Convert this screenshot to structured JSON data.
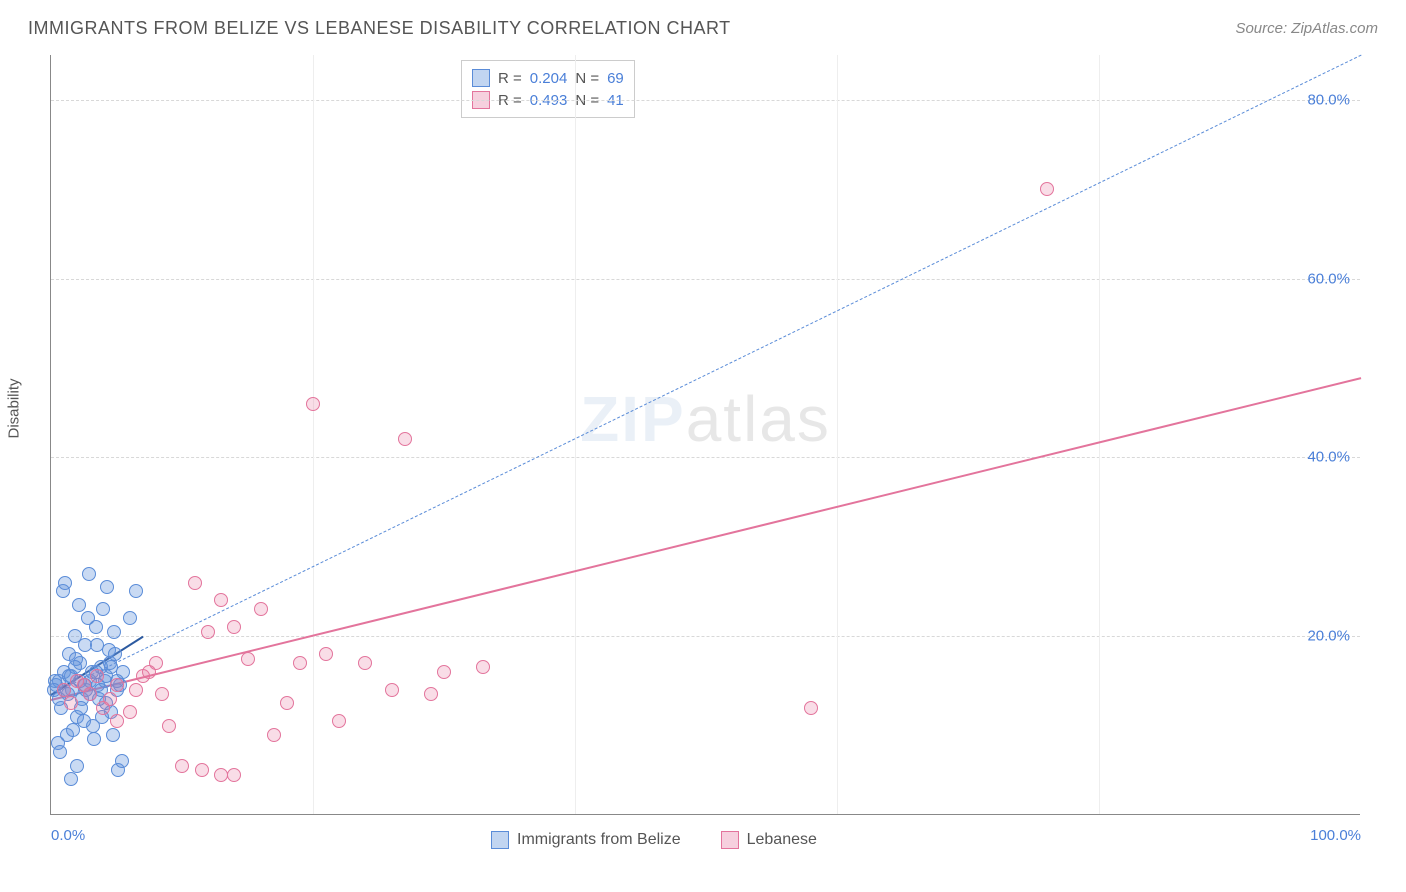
{
  "header": {
    "title": "IMMIGRANTS FROM BELIZE VS LEBANESE DISABILITY CORRELATION CHART",
    "source": "Source: ZipAtlas.com"
  },
  "watermark": {
    "bold": "ZIP",
    "thin": "atlas"
  },
  "chart": {
    "type": "scatter",
    "ylabel": "Disability",
    "xlim": [
      0,
      100
    ],
    "ylim": [
      0,
      85
    ],
    "background_color": "#ffffff",
    "grid_color": "#d8d8d8",
    "axis_color": "#888888",
    "tick_label_color": "#4a7fd8",
    "tick_fontsize": 15,
    "xtick_labels": [
      {
        "val": 0,
        "label": "0.0%"
      },
      {
        "val": 100,
        "label": "100.0%"
      }
    ],
    "xtick_minor": [
      20,
      40,
      60,
      80
    ],
    "ytick_labels": [
      {
        "val": 20,
        "label": "20.0%"
      },
      {
        "val": 40,
        "label": "40.0%"
      },
      {
        "val": 60,
        "label": "60.0%"
      },
      {
        "val": 80,
        "label": "80.0%"
      }
    ],
    "series": [
      {
        "name": "Immigrants from Belize",
        "color_fill": "rgba(100,150,220,0.35)",
        "color_stroke": "#5a8cd8",
        "marker_size": 14,
        "r": 0.204,
        "n": 69,
        "trend": {
          "style": "dashed",
          "color": "#5a8cd8",
          "width": 1.5,
          "from": [
            0,
            13.5
          ],
          "to": [
            100,
            85
          ]
        },
        "trend_solid_segment": {
          "style": "solid",
          "color": "#2c5aa0",
          "width": 2.5,
          "from": [
            0,
            13.5
          ],
          "to": [
            7,
            20
          ]
        },
        "points": [
          [
            0.4,
            14.5
          ],
          [
            0.6,
            15.0
          ],
          [
            0.8,
            12.0
          ],
          [
            1.0,
            16.0
          ],
          [
            1.2,
            9.0
          ],
          [
            1.4,
            18.0
          ],
          [
            1.6,
            14.0
          ],
          [
            1.8,
            20.0
          ],
          [
            2.0,
            11.0
          ],
          [
            2.2,
            17.0
          ],
          [
            2.4,
            13.0
          ],
          [
            2.6,
            19.0
          ],
          [
            2.8,
            22.0
          ],
          [
            3.0,
            15.0
          ],
          [
            3.2,
            10.0
          ],
          [
            3.4,
            21.0
          ],
          [
            3.6,
            14.5
          ],
          [
            3.8,
            16.5
          ],
          [
            4.0,
            23.0
          ],
          [
            4.2,
            12.5
          ],
          [
            4.4,
            18.5
          ],
          [
            4.6,
            11.5
          ],
          [
            4.8,
            20.5
          ],
          [
            5.0,
            14.0
          ],
          [
            0.5,
            8.0
          ],
          [
            0.7,
            7.0
          ],
          [
            0.9,
            25.0
          ],
          [
            1.1,
            26.0
          ],
          [
            1.3,
            13.5
          ],
          [
            1.5,
            15.5
          ],
          [
            1.7,
            9.5
          ],
          [
            1.9,
            17.5
          ],
          [
            2.1,
            23.5
          ],
          [
            2.3,
            12.0
          ],
          [
            2.5,
            10.5
          ],
          [
            2.7,
            14.0
          ],
          [
            2.9,
            27.0
          ],
          [
            3.1,
            16.0
          ],
          [
            3.3,
            8.5
          ],
          [
            3.5,
            19.0
          ],
          [
            3.7,
            13.0
          ],
          [
            3.9,
            11.0
          ],
          [
            4.1,
            15.0
          ],
          [
            4.3,
            25.5
          ],
          [
            4.5,
            17.0
          ],
          [
            4.7,
            9.0
          ],
          [
            4.9,
            18.0
          ],
          [
            5.1,
            5.0
          ],
          [
            5.3,
            14.5
          ],
          [
            5.5,
            16.0
          ],
          [
            0.3,
            15.0
          ],
          [
            0.6,
            13.0
          ],
          [
            1.0,
            14.0
          ],
          [
            1.4,
            15.5
          ],
          [
            1.8,
            16.5
          ],
          [
            2.2,
            15.0
          ],
          [
            2.6,
            14.5
          ],
          [
            3.0,
            13.5
          ],
          [
            3.4,
            16.0
          ],
          [
            3.8,
            14.0
          ],
          [
            4.2,
            15.5
          ],
          [
            4.6,
            16.5
          ],
          [
            5.0,
            15.0
          ],
          [
            5.4,
            6.0
          ],
          [
            0.2,
            14.0
          ],
          [
            6.0,
            22.0
          ],
          [
            6.5,
            25.0
          ],
          [
            1.5,
            4.0
          ],
          [
            2.0,
            5.5
          ]
        ]
      },
      {
        "name": "Lebanese",
        "color_fill": "rgba(230,120,160,0.25)",
        "color_stroke": "#e3749c",
        "marker_size": 14,
        "r": 0.493,
        "n": 41,
        "trend": {
          "style": "solid",
          "color": "#e3749c",
          "width": 2.5,
          "from": [
            0,
            13
          ],
          "to": [
            100,
            49
          ]
        },
        "points": [
          [
            1.0,
            14.0
          ],
          [
            2.0,
            15.0
          ],
          [
            3.0,
            13.5
          ],
          [
            4.0,
            12.0
          ],
          [
            5.0,
            14.5
          ],
          [
            6.0,
            11.5
          ],
          [
            7.0,
            15.5
          ],
          [
            8.0,
            17.0
          ],
          [
            9.0,
            10.0
          ],
          [
            5.0,
            10.5
          ],
          [
            11.0,
            26.0
          ],
          [
            12.0,
            20.5
          ],
          [
            13.0,
            24.0
          ],
          [
            14.0,
            21.0
          ],
          [
            15.0,
            17.5
          ],
          [
            16.0,
            23.0
          ],
          [
            17.0,
            9.0
          ],
          [
            18.0,
            12.5
          ],
          [
            19.0,
            17.0
          ],
          [
            20.0,
            46.0
          ],
          [
            21.0,
            18.0
          ],
          [
            22.0,
            10.5
          ],
          [
            24.0,
            17.0
          ],
          [
            26.0,
            14.0
          ],
          [
            27.0,
            42.0
          ],
          [
            29.0,
            13.5
          ],
          [
            30.0,
            16.0
          ],
          [
            33.0,
            16.5
          ],
          [
            58.0,
            12.0
          ],
          [
            76.0,
            70.0
          ],
          [
            2.5,
            14.5
          ],
          [
            3.5,
            15.5
          ],
          [
            4.5,
            13.0
          ],
          [
            1.5,
            12.5
          ],
          [
            6.5,
            14.0
          ],
          [
            7.5,
            16.0
          ],
          [
            10.0,
            5.5
          ],
          [
            11.5,
            5.0
          ],
          [
            13.0,
            4.5
          ],
          [
            14.0,
            4.5
          ],
          [
            8.5,
            13.5
          ]
        ]
      }
    ],
    "legend_top": {
      "border_color": "#cccccc",
      "rows": [
        {
          "swatch": "blue",
          "text_parts": [
            {
              "lbl": "R = "
            },
            {
              "stat": "0.204"
            },
            {
              "lbl": "    N = "
            },
            {
              "stat": "69"
            }
          ]
        },
        {
          "swatch": "pink",
          "text_parts": [
            {
              "lbl": "R = "
            },
            {
              "stat": "0.493"
            },
            {
              "lbl": "    N = "
            },
            {
              "stat": "41"
            }
          ]
        }
      ]
    },
    "legend_bottom": [
      {
        "swatch": "blue",
        "label": "Immigrants from Belize"
      },
      {
        "swatch": "pink",
        "label": "Lebanese"
      }
    ]
  }
}
